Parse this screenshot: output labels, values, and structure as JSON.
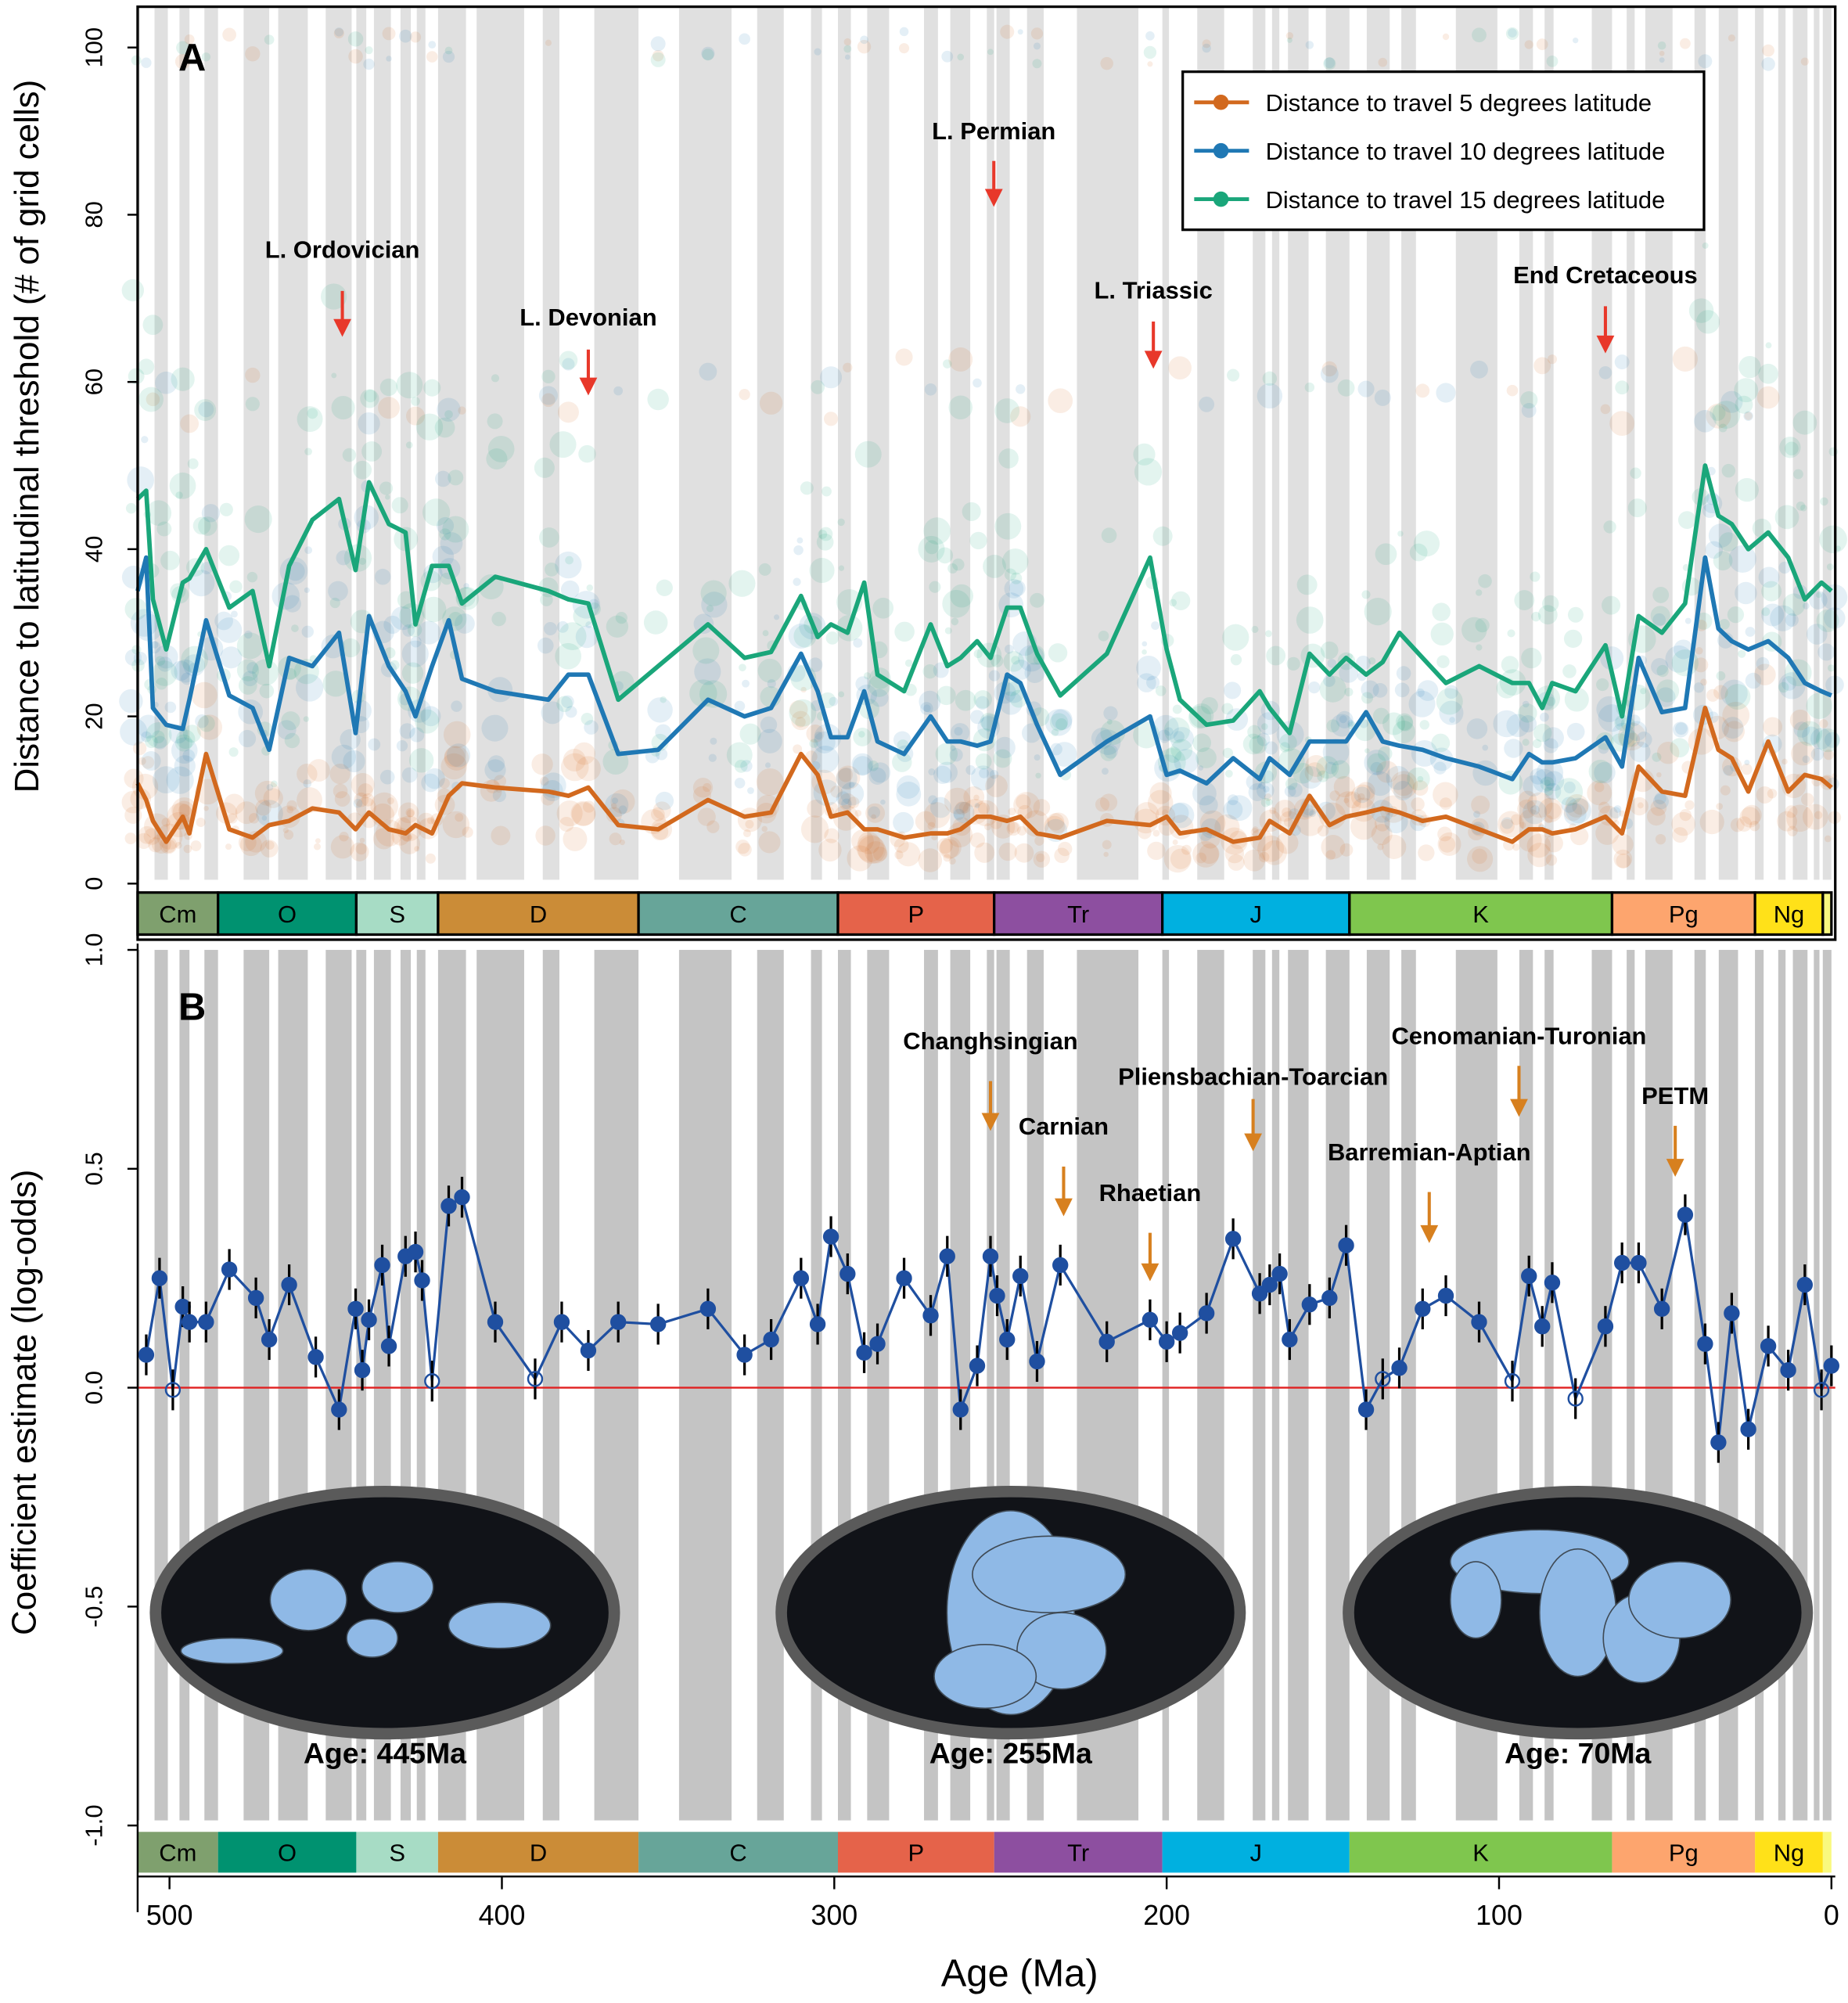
{
  "chart_data": [
    {
      "type": "line",
      "panel_label": "A",
      "ylabel": "Distance to latitudinal threshold (# of grid cells)",
      "xlabel": "Age (Ma)",
      "xlim": [
        510,
        0
      ],
      "ylim": [
        0,
        100
      ],
      "yticks": [
        "0",
        "20",
        "40",
        "60",
        "80",
        "100"
      ],
      "ytick_values": [
        0,
        20,
        40,
        60,
        80,
        100
      ],
      "legend_position": "top-right",
      "x": [
        510,
        507,
        505,
        501,
        496,
        494,
        489,
        482,
        475,
        470,
        464,
        457,
        449,
        444,
        440,
        434,
        429,
        426,
        421,
        416,
        412,
        402,
        386,
        380,
        374,
        365,
        353,
        338,
        327,
        319,
        310,
        305,
        301,
        296,
        291,
        287,
        279,
        271,
        266,
        262,
        257,
        253,
        248,
        244,
        239,
        232,
        218,
        205,
        200,
        196,
        188,
        180,
        172,
        169,
        163,
        157,
        151,
        146,
        140,
        135,
        130,
        123,
        116,
        106,
        96,
        91,
        87,
        84,
        77,
        68,
        63,
        58,
        51,
        44,
        38,
        34,
        30,
        25,
        19,
        13,
        8,
        3,
        0
      ],
      "series": [
        {
          "name": "Distance to travel 5 degrees latitude",
          "color": "#d2691e",
          "values": [
            12,
            10,
            7.5,
            5,
            8,
            6,
            15.5,
            6.5,
            5.5,
            7,
            7.5,
            9,
            8.5,
            6.5,
            8.5,
            6.5,
            6,
            7,
            6,
            10.5,
            12,
            11.5,
            11,
            10.5,
            11.5,
            7,
            6.5,
            10,
            8,
            8.5,
            15.5,
            13,
            8,
            8.5,
            6.5,
            6.5,
            5.5,
            6,
            6,
            6.5,
            8,
            8,
            7.5,
            8,
            6,
            5.5,
            7.5,
            7,
            8,
            6,
            6.5,
            5,
            5.5,
            7.5,
            6,
            10.5,
            7,
            8,
            8.5,
            9,
            8.5,
            7.5,
            8,
            6.5,
            5,
            6.5,
            6.5,
            6,
            6.5,
            8,
            6,
            14,
            11,
            10.5,
            21,
            16,
            15,
            11,
            17,
            11,
            13,
            12.5,
            11.5
          ]
        },
        {
          "name": "Distance to travel 10 degrees latitude",
          "color": "#1f78b4",
          "values": [
            35,
            39,
            21,
            19,
            18.5,
            22,
            31.5,
            22.5,
            21,
            16,
            27,
            26,
            30,
            18,
            32,
            26,
            23,
            20,
            26,
            31.5,
            24.5,
            23,
            22,
            25,
            25,
            15.5,
            16,
            22,
            20,
            21,
            27.5,
            23,
            17.5,
            17.5,
            23,
            17,
            15.5,
            20,
            17,
            17,
            16.5,
            17,
            25,
            24,
            19,
            13,
            17,
            20,
            13,
            13.5,
            12,
            15,
            12.5,
            15,
            13,
            17,
            17,
            17,
            20.5,
            17,
            16.5,
            16,
            15,
            14,
            12.5,
            15.5,
            14.5,
            14.5,
            15,
            17.5,
            14,
            27,
            20.5,
            21,
            39,
            30.5,
            29,
            28,
            29,
            27,
            24,
            23,
            22.5
          ]
        },
        {
          "name": "Distance to travel 15 degrees latitude",
          "color": "#1aa67a",
          "values": [
            46,
            47,
            34,
            28,
            36,
            36.5,
            40,
            33,
            35,
            26,
            38,
            43.5,
            46,
            37.5,
            48,
            43,
            42,
            31,
            38,
            38,
            33.5,
            36.7,
            35,
            34,
            33.5,
            22,
            26,
            31,
            27,
            27.7,
            34.4,
            29.5,
            31,
            30,
            36,
            25,
            23,
            31,
            26,
            27,
            29,
            27,
            33,
            33,
            27.5,
            22.5,
            27.5,
            39,
            28,
            22,
            19,
            19.5,
            23,
            21,
            18,
            27.5,
            25,
            27,
            25,
            26.5,
            30,
            27,
            24,
            26,
            24,
            24,
            21,
            24,
            23,
            28.5,
            20,
            32,
            30,
            33.5,
            50,
            44,
            43,
            40,
            42,
            39,
            34,
            36,
            35
          ]
        }
      ],
      "annotations": [
        {
          "text": "L. Ordovician",
          "age": 448
        },
        {
          "text": "L. Devonian",
          "age": 374
        },
        {
          "text": "L. Permian",
          "age": 252
        },
        {
          "text": "L. Triassic",
          "age": 204
        },
        {
          "text": "End Cretaceous",
          "age": 68
        }
      ]
    },
    {
      "type": "scatter",
      "panel_label": "B",
      "ylabel": "Coefficient estimate (log-odds)",
      "xlabel": "Age (Ma)",
      "xlim": [
        510,
        0
      ],
      "ylim": [
        -1.0,
        1.0
      ],
      "yticks": [
        "-1.0",
        "-0.5",
        "0.0",
        "0.5",
        "1.0"
      ],
      "ytick_values": [
        -1.0,
        -0.5,
        0.0,
        0.5,
        1.0
      ],
      "xticks": [
        "500",
        "400",
        "300",
        "200",
        "100",
        "0"
      ],
      "xtick_values": [
        500,
        400,
        300,
        200,
        100,
        0
      ],
      "reference_line": 0,
      "x": [
        507,
        503,
        499,
        496,
        494,
        489,
        482,
        474,
        470,
        464,
        456,
        449,
        444,
        442,
        440,
        436,
        434,
        429,
        426,
        424,
        421,
        416,
        412,
        402,
        390,
        382,
        374,
        365,
        353,
        338,
        327,
        319,
        310,
        305,
        301,
        296,
        291,
        287,
        279,
        271,
        266,
        262,
        257,
        253,
        251,
        248,
        244,
        239,
        232,
        218,
        205,
        200,
        196,
        188,
        180,
        172,
        169,
        166,
        163,
        157,
        151,
        146,
        140,
        135,
        130,
        123,
        116,
        106,
        96,
        91,
        87,
        84,
        77,
        68,
        63,
        58,
        51,
        44,
        38,
        34,
        30,
        25,
        19,
        13,
        8,
        3,
        0
      ],
      "values": [
        0.075,
        0.25,
        -0.005,
        0.185,
        0.15,
        0.15,
        0.27,
        0.205,
        0.11,
        0.235,
        0.07,
        -0.05,
        0.18,
        0.04,
        0.155,
        0.28,
        0.095,
        0.3,
        0.31,
        0.245,
        0.015,
        0.415,
        0.435,
        0.15,
        0.02,
        0.15,
        0.085,
        0.15,
        0.145,
        0.18,
        0.075,
        0.11,
        0.25,
        0.145,
        0.345,
        0.26,
        0.08,
        0.1,
        0.25,
        0.165,
        0.3,
        -0.05,
        0.05,
        0.3,
        0.21,
        0.11,
        0.255,
        0.06,
        0.28,
        0.105,
        0.155,
        0.105,
        0.125,
        0.17,
        0.34,
        0.215,
        0.235,
        0.26,
        0.11,
        0.19,
        0.205,
        0.325,
        -0.05,
        0.02,
        0.045,
        0.18,
        0.21,
        0.15,
        0.015,
        0.255,
        0.14,
        0.24,
        -0.025,
        0.14,
        0.285,
        0.285,
        0.18,
        0.395,
        0.1,
        -0.125,
        0.17,
        -0.095,
        0.095,
        0.04,
        0.235,
        -0.005,
        0.05
      ],
      "non_significant": [
        2,
        20,
        24,
        63,
        68,
        72,
        85
      ],
      "annotations": [
        {
          "text": "Changhsingian",
          "age": 253
        },
        {
          "text": "Carnian",
          "age": 231
        },
        {
          "text": "Rhaetian",
          "age": 205
        },
        {
          "text": "Pliensbachian-Toarcian",
          "age": 174
        },
        {
          "text": "Barremian-Aptian",
          "age": 121
        },
        {
          "text": "Cenomanian-Turonian",
          "age": 94
        },
        {
          "text": "PETM",
          "age": 47
        }
      ],
      "maps": [
        {
          "label": "Age: 445Ma"
        },
        {
          "label": "Age: 255Ma"
        },
        {
          "label": "Age: 70Ma"
        }
      ]
    }
  ],
  "periods": [
    {
      "label": "Cm",
      "start": 541,
      "end": 485.4,
      "color": "#7fa06e"
    },
    {
      "label": "O",
      "start": 485.4,
      "end": 443.8,
      "color": "#009270"
    },
    {
      "label": "S",
      "start": 443.8,
      "end": 419.2,
      "color": "#a7dcc5"
    },
    {
      "label": "D",
      "start": 419.2,
      "end": 358.9,
      "color": "#cb8c37"
    },
    {
      "label": "C",
      "start": 358.9,
      "end": 298.9,
      "color": "#67a599"
    },
    {
      "label": "P",
      "start": 298.9,
      "end": 251.9,
      "color": "#e5634a"
    },
    {
      "label": "Tr",
      "start": 251.9,
      "end": 201.3,
      "color": "#8d4fa0"
    },
    {
      "label": "J",
      "start": 201.3,
      "end": 145,
      "color": "#00b0e0"
    },
    {
      "label": "K",
      "start": 145,
      "end": 66,
      "color": "#7fc64e"
    },
    {
      "label": "Pg",
      "start": 66,
      "end": 23,
      "color": "#fda56e"
    },
    {
      "label": "Ng",
      "start": 23,
      "end": 2.58,
      "color": "#ffe119"
    },
    {
      "label": "",
      "start": 2.58,
      "end": 0,
      "color": "#f9f97f"
    }
  ],
  "stage_boundaries": [
    541,
    509,
    504.5,
    500.5,
    497,
    494,
    489.5,
    485.4,
    477.7,
    470,
    467.3,
    458.4,
    453,
    445.2,
    443.8,
    440.8,
    438.5,
    433.4,
    430.5,
    427.4,
    425.6,
    423,
    419.2,
    410.8,
    407.6,
    393.3,
    387.7,
    382.7,
    372.2,
    358.9,
    346.7,
    330.9,
    323.2,
    315.2,
    307,
    303.7,
    298.9,
    295,
    290.1,
    283.5,
    273,
    268.8,
    265.1,
    259.1,
    254.1,
    251.9,
    251.2,
    247.2,
    242,
    237,
    227,
    208.5,
    201.3,
    199.3,
    190.8,
    182.7,
    174.1,
    170.3,
    168.3,
    166.1,
    163.5,
    157.3,
    152.1,
    145,
    139.8,
    132.9,
    129.4,
    125,
    113,
    100.5,
    93.9,
    89.8,
    86.3,
    83.6,
    72.1,
    66,
    61.6,
    59.2,
    56,
    47.8,
    41.2,
    37.8,
    33.9,
    28.1,
    23,
    20.4,
    16,
    13.8,
    11.6,
    7.2,
    5.3,
    3.6,
    2.6,
    0
  ]
}
